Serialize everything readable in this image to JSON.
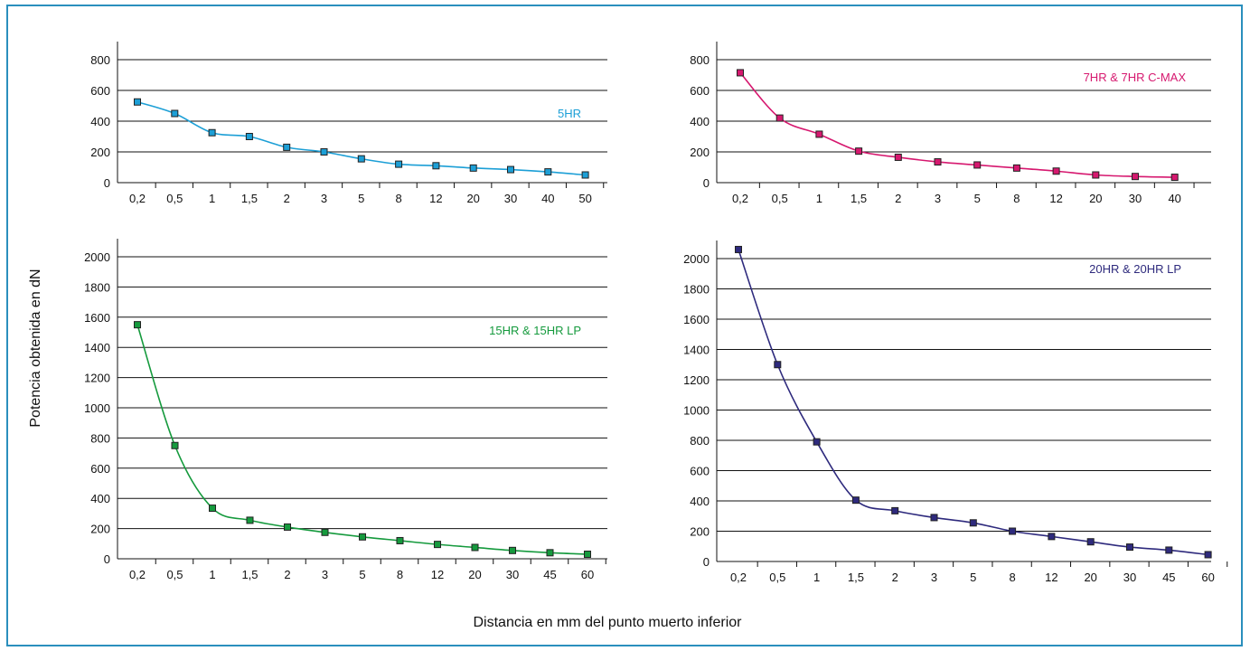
{
  "ylabel": "Potencia obtenida en dN",
  "xlabel": "Distancia en mm del punto muerto inferior",
  "chart_data": [
    {
      "type": "line",
      "series": [
        {
          "name": "5HR",
          "values": [
            525,
            450,
            325,
            300,
            230,
            200,
            155,
            120,
            110,
            95,
            85,
            70,
            50
          ]
        }
      ],
      "categories": [
        "0,2",
        "0,5",
        "1",
        "1,5",
        "2",
        "3",
        "5",
        "8",
        "12",
        "20",
        "30",
        "40",
        "50"
      ],
      "yticks": [
        0,
        200,
        400,
        600,
        800
      ],
      "ylim": [
        0,
        800
      ],
      "color": "#1c9fd6",
      "legend": "top-right",
      "grid": true
    },
    {
      "type": "line",
      "series": [
        {
          "name": "7HR & 7HR C-MAX",
          "values": [
            715,
            420,
            315,
            205,
            165,
            135,
            115,
            95,
            75,
            50,
            40,
            35
          ]
        }
      ],
      "categories": [
        "0,2",
        "0,5",
        "1",
        "1,5",
        "2",
        "3",
        "5",
        "8",
        "12",
        "20",
        "30",
        "40"
      ],
      "yticks": [
        0,
        200,
        400,
        600,
        800
      ],
      "ylim": [
        0,
        800
      ],
      "color": "#d6186f",
      "legend": "top-right",
      "grid": true
    },
    {
      "type": "line",
      "series": [
        {
          "name": "15HR & 15HR LP",
          "values": [
            1550,
            750,
            335,
            255,
            210,
            175,
            145,
            120,
            95,
            75,
            55,
            40,
            30
          ]
        }
      ],
      "categories": [
        "0,2",
        "0,5",
        "1",
        "1,5",
        "2",
        "3",
        "5",
        "8",
        "12",
        "20",
        "30",
        "45",
        "60"
      ],
      "yticks": [
        0,
        200,
        400,
        600,
        800,
        1000,
        1200,
        1400,
        1600,
        1800,
        2000
      ],
      "ylim": [
        0,
        2000
      ],
      "color": "#159a3d",
      "legend": "top-right",
      "grid": true
    },
    {
      "type": "line",
      "series": [
        {
          "name": "20HR & 20HR LP",
          "values": [
            2060,
            1300,
            790,
            405,
            335,
            290,
            255,
            200,
            165,
            130,
            95,
            75,
            45
          ]
        }
      ],
      "categories": [
        "0,2",
        "0,5",
        "1",
        "1,5",
        "2",
        "3",
        "5",
        "8",
        "12",
        "20",
        "30",
        "45",
        "60"
      ],
      "yticks": [
        0,
        200,
        400,
        600,
        800,
        1000,
        1200,
        1400,
        1600,
        1800,
        2000
      ],
      "ylim": [
        0,
        2000
      ],
      "color": "#2e2a7d",
      "legend": "top-right",
      "grid": true
    }
  ]
}
